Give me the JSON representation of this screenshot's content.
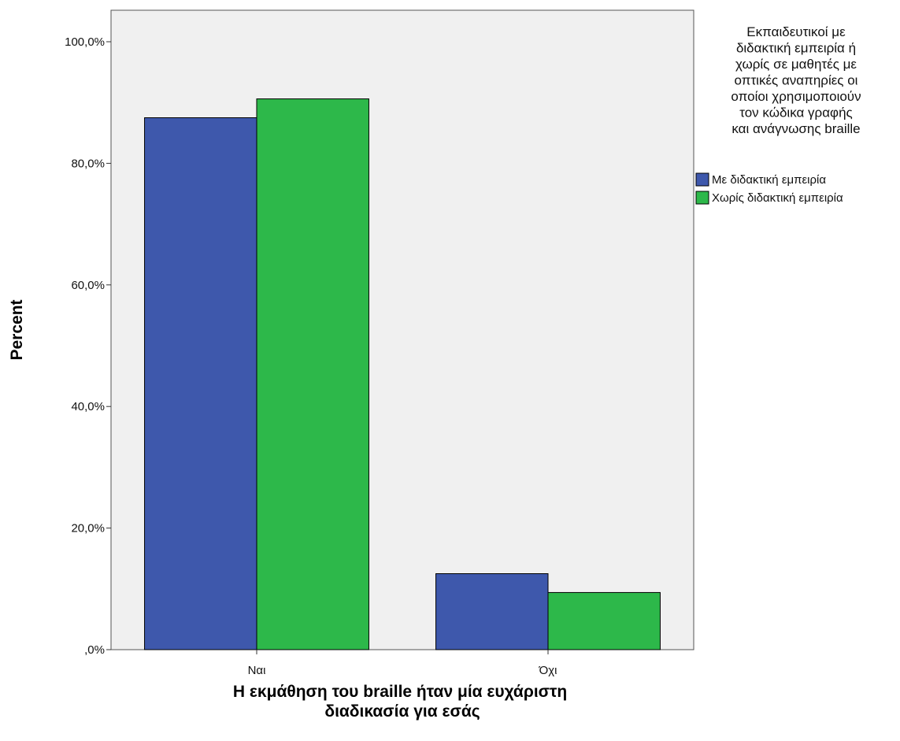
{
  "chart_data": {
    "type": "bar",
    "categories": [
      "Ναι",
      "Όχι"
    ],
    "series": [
      {
        "name": "Με διδακτική εμπειρία",
        "values": [
          87.5,
          12.5
        ],
        "color": "#3e58ac"
      },
      {
        "name": "Χωρίς διδακτική εμπειρία",
        "values": [
          90.6,
          9.4
        ],
        "color": "#2db84a"
      }
    ],
    "yticks": [
      ",0%",
      "20,0%",
      "40,0%",
      "60,0%",
      "80,0%",
      "100,0%"
    ],
    "ylim": [
      0,
      100
    ],
    "ylabel": "Percent",
    "xlabel_lines": [
      "Η εκμάθηση του braille ήταν μία ευχάριστη",
      "διαδικασία για εσάς"
    ],
    "legend_title_lines": [
      "Εκπαιδευτικοί με",
      "διδακτική εμπειρία ή",
      "χωρίς σε μαθητές με",
      "οπτικές αναπηρίες οι",
      "οποίοι χρησιμοποιούν",
      "τον κώδικα γραφής",
      "και ανάγνωσης braille"
    ],
    "legend_position": "right",
    "plot_background": "#f0f0f0",
    "grid": false
  }
}
